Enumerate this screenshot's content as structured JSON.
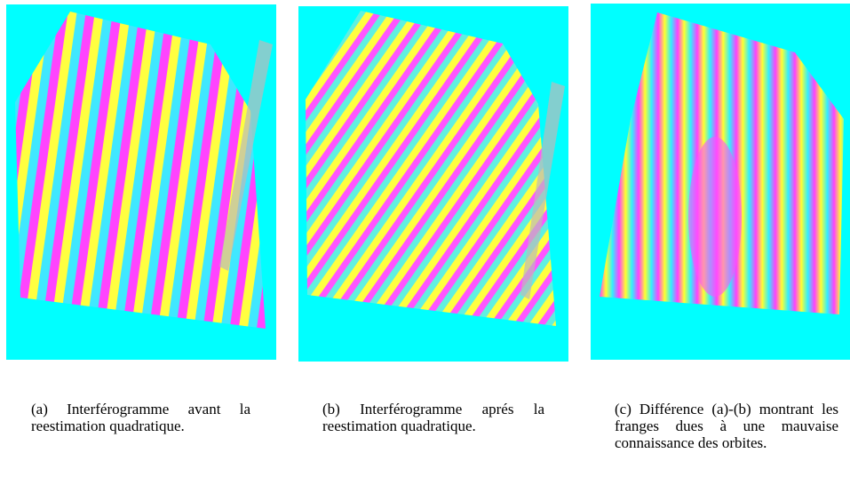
{
  "panels": [
    {
      "label": "(a)",
      "caption": "Interférogramme avant la reestimation quadratique."
    },
    {
      "label": "(b)",
      "caption": "Interférogramme aprés la reestimation quadratique."
    },
    {
      "label": "(c)",
      "caption": "Différence (a)-(b) montrant les franges dues à une mauvaise connaissance des orbites."
    }
  ]
}
